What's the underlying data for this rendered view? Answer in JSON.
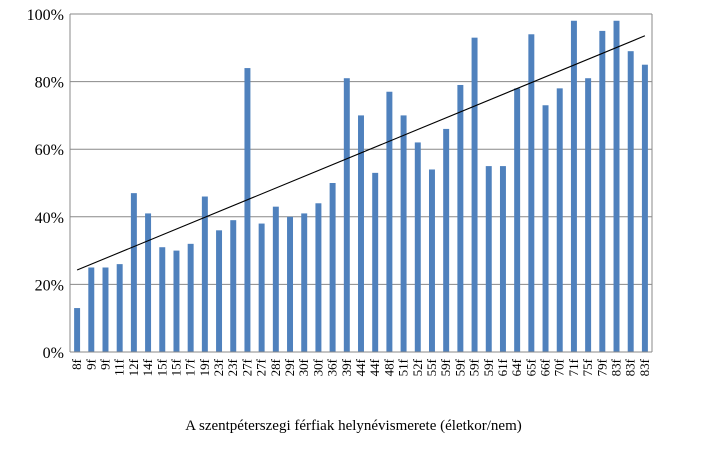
{
  "chart_data": {
    "type": "bar",
    "title": "",
    "xlabel": "",
    "ylabel": "",
    "caption": "A szentpéterszegi férfiak helynévismerete (életkor/nem)",
    "ylim": [
      0,
      100
    ],
    "yticks": [
      "0%",
      "20%",
      "40%",
      "60%",
      "80%",
      "100%"
    ],
    "grid": true,
    "legend": "none",
    "bar_color": "#4F81BD",
    "trendline": {
      "type": "linear",
      "color": "#000000"
    },
    "categories": [
      "8f",
      "9f",
      "9f",
      "11f",
      "12f",
      "14f",
      "15f",
      "15f",
      "17f",
      "19f",
      "23f",
      "23f",
      "27f",
      "27f",
      "28f",
      "29f",
      "30f",
      "30f",
      "36f",
      "39f",
      "44f",
      "44f",
      "48f",
      "51f",
      "52f",
      "55f",
      "59f",
      "59f",
      "59f",
      "59f",
      "61f",
      "64f",
      "65f",
      "66f",
      "70f",
      "71f",
      "75f",
      "79f",
      "83f",
      "83f",
      "83f"
    ],
    "values": [
      13,
      25,
      25,
      26,
      47,
      41,
      31,
      30,
      32,
      46,
      36,
      39,
      84,
      38,
      43,
      40,
      41,
      44,
      50,
      81,
      70,
      53,
      77,
      70,
      62,
      54,
      66,
      79,
      93,
      55,
      55,
      78,
      94,
      73,
      78,
      98,
      81,
      95,
      98,
      89,
      85
    ]
  }
}
